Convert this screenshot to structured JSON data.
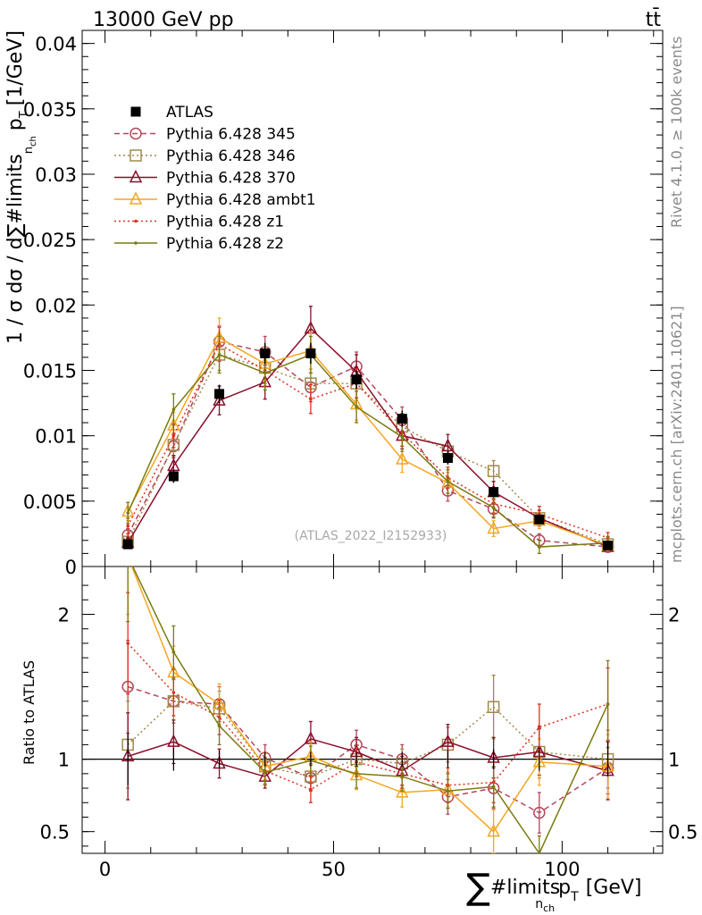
{
  "header": {
    "left": "13000 GeV pp",
    "right": "tt̄"
  },
  "side_notes": {
    "top": "Rivet 4.1.0, ≥ 100k events",
    "bottom": "mcplots.cern.ch [arXiv:2401.10621]"
  },
  "chart_data": {
    "type": "line",
    "title": "",
    "analysis_id": "(ATLAS_2022_I2152933)",
    "xlabel": "∑#limits_{n_ch} p_T [GeV]",
    "xlabel_parts": {
      "sum": "∑",
      "main": "#limits",
      "sub": "n",
      "subsub": "ch",
      "p": "p",
      "psub": "T",
      "unit": "[GeV]"
    },
    "ylabel": "1 / σ dσ / d∑#limits_{n_ch} p_T [1/GeV]",
    "ylabel_parts": {
      "main": "1 / σ dσ / d∑#limits",
      "sub": "n",
      "subsub": "ch",
      "p": "p",
      "psub": "T",
      "unit": "[1/GeV]"
    },
    "ratio_ylabel": "Ratio to ATLAS",
    "xlim": [
      -5,
      122
    ],
    "ylim": [
      0,
      0.041
    ],
    "ratio_ylim": [
      0.35,
      2.33
    ],
    "x_ticks": [
      0,
      50,
      100
    ],
    "x_tick_labels": [
      "0",
      "50",
      "100"
    ],
    "y_ticks": [
      0,
      0.005,
      0.01,
      0.015,
      0.02,
      0.025,
      0.03,
      0.035,
      0.04
    ],
    "y_tick_labels": [
      "0",
      "0.005",
      "0.01",
      "0.015",
      "0.02",
      "0.025",
      "0.03",
      "0.035",
      "0.04"
    ],
    "ratio_ticks": [
      0.5,
      1,
      2
    ],
    "ratio_tick_labels": [
      "0.5",
      "1",
      "2"
    ],
    "x": [
      5,
      15,
      25,
      35,
      45,
      55,
      65,
      75,
      85,
      95,
      110
    ],
    "data": {
      "name": "ATLAS",
      "values": [
        0.0017,
        0.0069,
        0.0132,
        0.0163,
        0.0163,
        0.0143,
        0.0113,
        0.0083,
        0.0057,
        0.0036,
        0.0016
      ],
      "errors": [
        0.0003,
        0.0005,
        0.0007,
        0.0008,
        0.0008,
        0.0007,
        0.0006,
        0.0005,
        0.0004,
        0.0003,
        0.0002
      ]
    },
    "series": [
      {
        "name": "Pythia 6.428 345",
        "color": "#b5475a",
        "dash": "6,4",
        "marker": "circle",
        "values": [
          0.0024,
          0.0092,
          0.0172,
          0.0164,
          0.0137,
          0.0153,
          0.0112,
          0.0058,
          0.0044,
          0.002,
          0.0015
        ],
        "errors": [
          0.0005,
          0.0009,
          0.0012,
          0.0012,
          0.0011,
          0.0011,
          0.001,
          0.0008,
          0.0007,
          0.0005,
          0.0003
        ]
      },
      {
        "name": "Pythia 6.428 346",
        "color": "#a08a4a",
        "dash": "2,3",
        "marker": "square",
        "values": [
          0.0019,
          0.0093,
          0.0162,
          0.0152,
          0.014,
          0.014,
          0.0107,
          0.0088,
          0.0073,
          0.0037,
          0.0017
        ],
        "errors": [
          0.0004,
          0.0009,
          0.0012,
          0.0012,
          0.0011,
          0.0011,
          0.001,
          0.0008,
          0.0008,
          0.0006,
          0.0003
        ]
      },
      {
        "name": "Pythia 6.428 370",
        "color": "#8b0e2a",
        "dash": "",
        "marker": "triangle",
        "values": [
          0.0018,
          0.0077,
          0.0127,
          0.0141,
          0.0182,
          0.0149,
          0.01,
          0.0092,
          0.0057,
          0.0037,
          0.0015
        ],
        "errors": [
          0.0004,
          0.0008,
          0.0011,
          0.0013,
          0.0017,
          0.0013,
          0.001,
          0.0009,
          0.0008,
          0.0006,
          0.0003
        ]
      },
      {
        "name": "Pythia 6.428 ambt1",
        "color": "#f5a623",
        "dash": "",
        "marker": "triangle",
        "values": [
          0.0042,
          0.0108,
          0.0175,
          0.0155,
          0.0165,
          0.0124,
          0.0082,
          0.0064,
          0.0029,
          0.0035,
          0.0016
        ],
        "errors": [
          0.0007,
          0.001,
          0.0015,
          0.0013,
          0.0014,
          0.0012,
          0.001,
          0.0008,
          0.0006,
          0.0006,
          0.0004
        ]
      },
      {
        "name": "Pythia 6.428 z1",
        "color": "#e03020",
        "dash": "2,3",
        "marker": "dot",
        "values": [
          0.0031,
          0.01,
          0.017,
          0.015,
          0.0128,
          0.014,
          0.0102,
          0.0068,
          0.0048,
          0.004,
          0.0022
        ],
        "errors": [
          0.0006,
          0.0009,
          0.0013,
          0.0012,
          0.0011,
          0.0011,
          0.001,
          0.0008,
          0.0007,
          0.0006,
          0.0004
        ]
      },
      {
        "name": "Pythia 6.428 z2",
        "color": "#7a7a10",
        "dash": "",
        "marker": "dot",
        "values": [
          0.0041,
          0.012,
          0.0162,
          0.0148,
          0.0162,
          0.0122,
          0.0099,
          0.0065,
          0.0045,
          0.0015,
          0.0018
        ],
        "errors": [
          0.0008,
          0.0012,
          0.0014,
          0.0013,
          0.0014,
          0.0012,
          0.0011,
          0.0009,
          0.0007,
          0.0005,
          0.0005
        ]
      }
    ],
    "ratio_series": [
      {
        "name": "Pythia 6.428 345",
        "values": [
          1.5,
          1.4,
          1.38,
          1.01,
          0.87,
          1.1,
          1.0,
          0.74,
          0.8,
          0.63,
          0.94
        ],
        "errors": [
          0.32,
          0.15,
          0.12,
          0.09,
          0.09,
          0.1,
          0.1,
          0.12,
          0.14,
          0.14,
          0.18
        ]
      },
      {
        "name": "Pythia 6.428 346",
        "values": [
          1.1,
          1.4,
          1.35,
          0.95,
          0.88,
          1.0,
          0.97,
          1.1,
          1.36,
          1.05,
          1.0
        ],
        "errors": [
          0.3,
          0.15,
          0.12,
          0.09,
          0.09,
          0.1,
          0.1,
          0.12,
          0.22,
          0.18,
          0.2
        ]
      },
      {
        "name": "Pythia 6.428 370",
        "values": [
          1.02,
          1.12,
          0.97,
          0.88,
          1.14,
          1.05,
          0.92,
          1.12,
          1.01,
          1.05,
          0.92
        ],
        "errors": [
          0.3,
          0.15,
          0.1,
          0.08,
          0.12,
          0.1,
          0.1,
          0.12,
          0.14,
          0.16,
          0.2
        ]
      },
      {
        "name": "Pythia 6.428 ambt1",
        "values": [
          2.4,
          1.6,
          1.38,
          0.95,
          1.02,
          0.89,
          0.77,
          0.79,
          0.5,
          0.98,
          0.95
        ],
        "errors": [
          0.4,
          0.18,
          0.14,
          0.09,
          0.1,
          0.1,
          0.1,
          0.12,
          0.15,
          0.16,
          0.22
        ]
      },
      {
        "name": "Pythia 6.428 z1",
        "values": [
          1.8,
          1.46,
          1.29,
          0.92,
          0.79,
          0.98,
          0.9,
          0.82,
          0.84,
          1.22,
          1.38
        ],
        "errors": [
          0.35,
          0.16,
          0.12,
          0.09,
          0.09,
          0.1,
          0.1,
          0.12,
          0.14,
          0.16,
          0.25
        ]
      },
      {
        "name": "Pythia 6.428 z2",
        "values": [
          2.4,
          1.74,
          1.23,
          0.91,
          0.99,
          0.9,
          0.88,
          0.78,
          0.81,
          0.35,
          1.38
        ],
        "errors": [
          0.45,
          0.18,
          0.13,
          0.09,
          0.1,
          0.1,
          0.1,
          0.12,
          0.14,
          0.12,
          0.3
        ]
      }
    ],
    "ratio_data_errors": [
      0.18,
      0.08,
      0.06,
      0.05,
      0.05,
      0.05,
      0.05,
      0.06,
      0.07,
      0.08,
      0.12
    ],
    "legend_position": "top-left"
  }
}
